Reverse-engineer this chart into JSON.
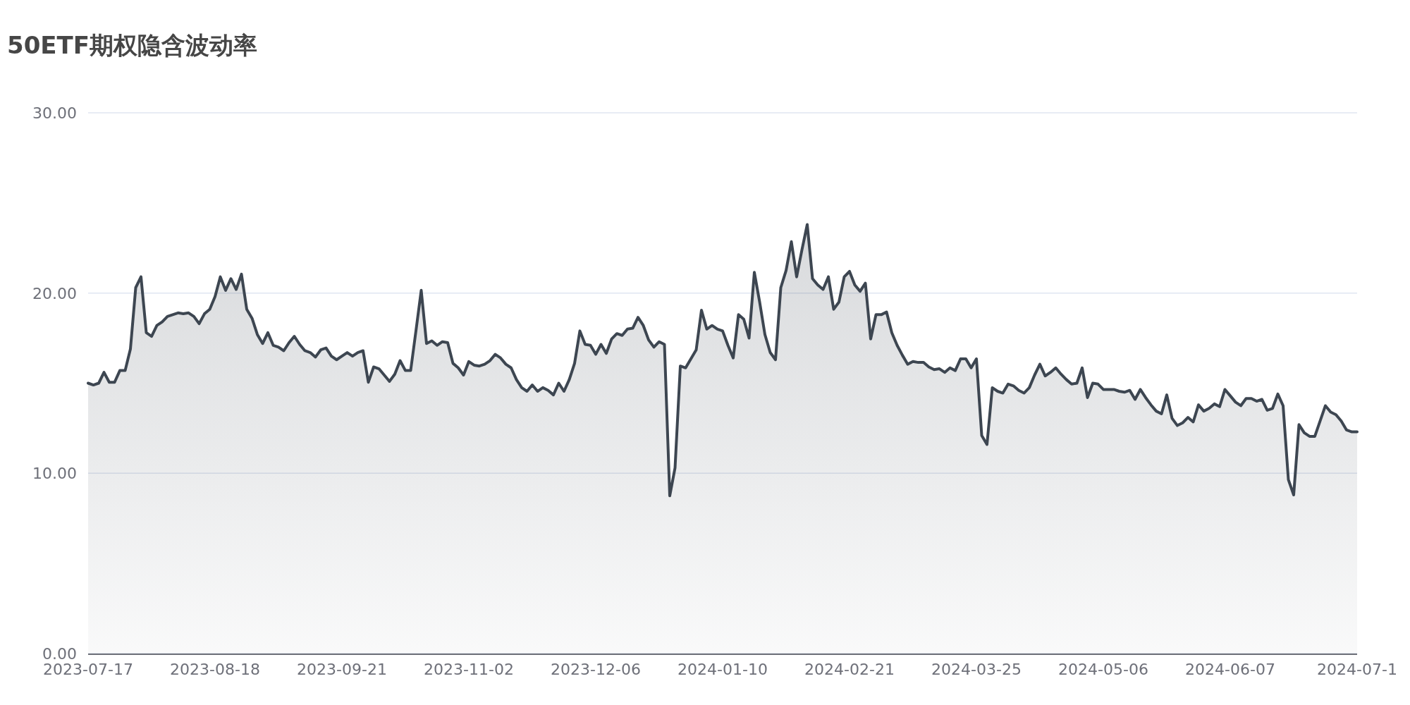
{
  "chart_data": {
    "type": "area",
    "title": "50ETF期权隐含波动率",
    "categories": [
      "2023-07-17",
      null,
      null,
      null,
      null,
      null,
      null,
      null,
      null,
      null,
      null,
      null,
      null,
      null,
      null,
      null,
      null,
      null,
      null,
      null,
      null,
      null,
      null,
      null,
      "2023-08-18",
      null,
      null,
      null,
      null,
      null,
      null,
      null,
      null,
      null,
      null,
      null,
      null,
      null,
      null,
      null,
      null,
      null,
      null,
      null,
      null,
      null,
      null,
      null,
      "2023-09-21",
      null,
      null,
      null,
      null,
      null,
      null,
      null,
      null,
      null,
      null,
      null,
      null,
      null,
      null,
      null,
      null,
      null,
      null,
      null,
      null,
      null,
      null,
      null,
      "2023-11-02",
      null,
      null,
      null,
      null,
      null,
      null,
      null,
      null,
      null,
      null,
      null,
      null,
      null,
      null,
      null,
      null,
      null,
      null,
      null,
      null,
      null,
      null,
      null,
      "2023-12-06",
      null,
      null,
      null,
      null,
      null,
      null,
      null,
      null,
      null,
      null,
      null,
      null,
      null,
      null,
      null,
      null,
      null,
      null,
      null,
      null,
      null,
      null,
      null,
      "2024-01-10",
      null,
      null,
      null,
      null,
      null,
      null,
      null,
      null,
      null,
      null,
      null,
      null,
      null,
      null,
      null,
      null,
      null,
      null,
      null,
      null,
      null,
      null,
      null,
      "2024-02-21",
      null,
      null,
      null,
      null,
      null,
      null,
      null,
      null,
      null,
      null,
      null,
      null,
      null,
      null,
      null,
      null,
      null,
      null,
      null,
      null,
      null,
      null,
      null,
      "2024-03-25",
      null,
      null,
      null,
      null,
      null,
      null,
      null,
      null,
      null,
      null,
      null,
      null,
      null,
      null,
      null,
      null,
      null,
      null,
      null,
      null,
      null,
      null,
      null,
      "2024-05-06",
      null,
      null,
      null,
      null,
      null,
      null,
      null,
      null,
      null,
      null,
      null,
      null,
      null,
      null,
      null,
      null,
      null,
      null,
      null,
      null,
      null,
      null,
      null,
      "2024-06-07",
      null,
      null,
      null,
      null,
      null,
      null,
      null,
      null,
      null,
      null,
      null,
      null,
      null,
      null,
      null,
      null,
      null,
      null,
      null,
      null,
      null,
      null,
      null,
      "2024-07-1"
    ],
    "series": [
      {
        "color": "#3d4651",
        "values": [
          15.0,
          14.9,
          15.0,
          15.6,
          15.05,
          15.05,
          15.7,
          15.7,
          16.9,
          20.3,
          20.9,
          17.8,
          17.6,
          18.2,
          18.4,
          18.7,
          18.8,
          18.9,
          18.85,
          18.9,
          18.7,
          18.3,
          18.85,
          19.1,
          19.8,
          20.9,
          20.15,
          20.8,
          20.2,
          21.05,
          19.1,
          18.6,
          17.7,
          17.2,
          17.8,
          17.1,
          17.0,
          16.8,
          17.25,
          17.6,
          17.15,
          16.8,
          16.7,
          16.45,
          16.85,
          16.95,
          16.5,
          16.3,
          16.5,
          16.7,
          16.5,
          16.7,
          16.8,
          15.05,
          15.9,
          15.8,
          15.45,
          15.1,
          15.5,
          16.25,
          15.7,
          15.7,
          17.9,
          20.15,
          17.2,
          17.35,
          17.1,
          17.3,
          17.25,
          16.1,
          15.85,
          15.45,
          16.2,
          16.0,
          15.95,
          16.05,
          16.25,
          16.6,
          16.4,
          16.05,
          15.85,
          15.2,
          14.75,
          14.55,
          14.9,
          14.55,
          14.75,
          14.6,
          14.35,
          15.0,
          14.55,
          15.2,
          16.1,
          17.9,
          17.15,
          17.1,
          16.6,
          17.15,
          16.65,
          17.45,
          17.75,
          17.65,
          18.0,
          18.05,
          18.65,
          18.2,
          17.4,
          17.0,
          17.3,
          17.15,
          8.75,
          10.3,
          15.95,
          15.85,
          16.35,
          16.85,
          19.05,
          18.0,
          18.2,
          18.0,
          17.9,
          17.1,
          16.4,
          18.8,
          18.55,
          17.5,
          21.15,
          19.5,
          17.7,
          16.7,
          16.3,
          20.3,
          21.25,
          22.85,
          20.9,
          22.4,
          23.8,
          20.8,
          20.45,
          20.2,
          20.9,
          19.1,
          19.5,
          20.9,
          21.2,
          20.45,
          20.1,
          20.55,
          17.45,
          18.8,
          18.8,
          18.95,
          17.8,
          17.1,
          16.55,
          16.05,
          16.2,
          16.15,
          16.15,
          15.9,
          15.75,
          15.8,
          15.6,
          15.85,
          15.7,
          16.35,
          16.35,
          15.85,
          16.35,
          12.1,
          11.6,
          14.75,
          14.55,
          14.45,
          14.95,
          14.85,
          14.6,
          14.45,
          14.75,
          15.45,
          16.05,
          15.4,
          15.6,
          15.85,
          15.5,
          15.2,
          14.95,
          15.0,
          15.85,
          14.2,
          15.0,
          14.95,
          14.65,
          14.65,
          14.65,
          14.55,
          14.5,
          14.6,
          14.1,
          14.65,
          14.2,
          13.8,
          13.45,
          13.3,
          14.35,
          13.05,
          12.65,
          12.8,
          13.1,
          12.85,
          13.8,
          13.45,
          13.6,
          13.85,
          13.7,
          14.65,
          14.3,
          13.95,
          13.75,
          14.15,
          14.15,
          14.0,
          14.1,
          13.5,
          13.6,
          14.4,
          13.75,
          9.65,
          8.8,
          12.7,
          12.25,
          12.05,
          12.05,
          12.9,
          13.75,
          13.4,
          13.25,
          12.9,
          12.4,
          12.3,
          12.3
        ]
      }
    ],
    "ylim": [
      0,
      30
    ],
    "yticks": [
      {
        "value": 0,
        "label": "0.00"
      },
      {
        "value": 10,
        "label": "10.00"
      },
      {
        "value": 20,
        "label": "20.00"
      },
      {
        "value": 30,
        "label": "30.00"
      }
    ],
    "grid": "y"
  }
}
